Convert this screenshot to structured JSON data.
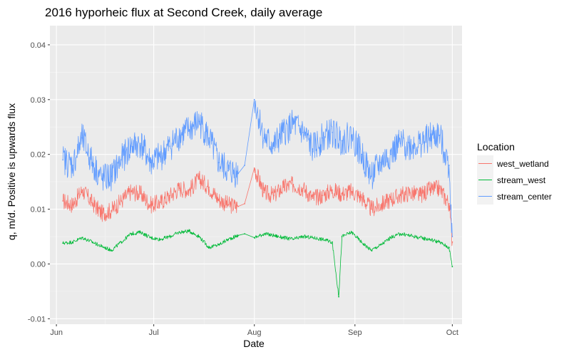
{
  "chart_data": {
    "type": "line",
    "title": "2016 hyporheic flux at Second Creek, daily average",
    "xlabel": "Date",
    "ylabel": "q, m/d. Positive is upwards flux",
    "xlim": [
      "2016-05-30",
      "2016-10-04"
    ],
    "ylim": [
      -0.011,
      0.0435
    ],
    "x_ticks": [
      {
        "date": "2016-06-01",
        "label": "Jun"
      },
      {
        "date": "2016-07-01",
        "label": "Jul"
      },
      {
        "date": "2016-08-01",
        "label": "Aug"
      },
      {
        "date": "2016-09-01",
        "label": "Sep"
      },
      {
        "date": "2016-10-01",
        "label": "Oct"
      }
    ],
    "y_ticks": [
      {
        "value": -0.01,
        "label": "-0.01"
      },
      {
        "value": 0.0,
        "label": "0.00"
      },
      {
        "value": 0.01,
        "label": "0.01"
      },
      {
        "value": 0.02,
        "label": "0.02"
      },
      {
        "value": 0.03,
        "label": "0.03"
      },
      {
        "value": 0.04,
        "label": "0.04"
      }
    ],
    "grid": true,
    "background": "#ebebeb",
    "legend": {
      "title": "Location",
      "placement": "right"
    },
    "series": [
      {
        "name": "west_wetland",
        "color": "#f8766d",
        "x": [
          "2016-06-03",
          "2016-06-06",
          "2016-06-09",
          "2016-06-12",
          "2016-06-15",
          "2016-06-18",
          "2016-06-21",
          "2016-06-24",
          "2016-06-27",
          "2016-06-30",
          "2016-07-03",
          "2016-07-06",
          "2016-07-09",
          "2016-07-12",
          "2016-07-15",
          "2016-07-18",
          "2016-07-21",
          "2016-07-24",
          "2016-07-27",
          "2016-07-29",
          "2016-08-01",
          "2016-08-04",
          "2016-08-07",
          "2016-08-10",
          "2016-08-13",
          "2016-08-16",
          "2016-08-19",
          "2016-08-22",
          "2016-08-25",
          "2016-08-28",
          "2016-08-31",
          "2016-09-03",
          "2016-09-06",
          "2016-09-09",
          "2016-09-12",
          "2016-09-15",
          "2016-09-18",
          "2016-09-21",
          "2016-09-24",
          "2016-09-27",
          "2016-09-30",
          "2016-10-01"
        ],
        "y": [
          0.0115,
          0.0108,
          0.0135,
          0.0112,
          0.0092,
          0.0098,
          0.0115,
          0.0132,
          0.0128,
          0.0108,
          0.0112,
          0.0125,
          0.0138,
          0.0135,
          0.0155,
          0.014,
          0.0118,
          0.0108,
          0.0105,
          0.011,
          0.0175,
          0.013,
          0.0125,
          0.014,
          0.0145,
          0.0138,
          0.012,
          0.0125,
          0.0135,
          0.0128,
          0.0132,
          0.0122,
          0.01,
          0.0108,
          0.0118,
          0.0125,
          0.013,
          0.0125,
          0.0135,
          0.0138,
          0.011,
          0.004
        ]
      },
      {
        "name": "stream_west",
        "color": "#00ba38",
        "x": [
          "2016-06-03",
          "2016-06-06",
          "2016-06-09",
          "2016-06-12",
          "2016-06-15",
          "2016-06-18",
          "2016-06-21",
          "2016-06-24",
          "2016-06-27",
          "2016-06-30",
          "2016-07-03",
          "2016-07-06",
          "2016-07-09",
          "2016-07-12",
          "2016-07-15",
          "2016-07-18",
          "2016-07-21",
          "2016-07-24",
          "2016-07-27",
          "2016-07-29",
          "2016-08-01",
          "2016-08-04",
          "2016-08-07",
          "2016-08-10",
          "2016-08-13",
          "2016-08-16",
          "2016-08-19",
          "2016-08-22",
          "2016-08-25",
          "2016-08-27",
          "2016-08-28",
          "2016-08-31",
          "2016-09-03",
          "2016-09-06",
          "2016-09-09",
          "2016-09-12",
          "2016-09-15",
          "2016-09-18",
          "2016-09-21",
          "2016-09-24",
          "2016-09-27",
          "2016-09-30",
          "2016-10-01"
        ],
        "y": [
          0.0038,
          0.004,
          0.0048,
          0.004,
          0.0032,
          0.0025,
          0.004,
          0.0055,
          0.0058,
          0.0048,
          0.0045,
          0.005,
          0.0058,
          0.006,
          0.005,
          0.003,
          0.0035,
          0.0045,
          0.0052,
          0.0055,
          0.0048,
          0.0055,
          0.0052,
          0.0048,
          0.0045,
          0.005,
          0.0048,
          0.0045,
          0.004,
          -0.006,
          0.005,
          0.0058,
          0.004,
          0.0025,
          0.0035,
          0.0048,
          0.0055,
          0.0052,
          0.0048,
          0.0045,
          0.004,
          0.003,
          -0.0005
        ]
      },
      {
        "name": "stream_center",
        "color": "#619cff",
        "x": [
          "2016-06-03",
          "2016-06-06",
          "2016-06-09",
          "2016-06-12",
          "2016-06-15",
          "2016-06-18",
          "2016-06-21",
          "2016-06-24",
          "2016-06-27",
          "2016-06-30",
          "2016-07-03",
          "2016-07-06",
          "2016-07-09",
          "2016-07-12",
          "2016-07-15",
          "2016-07-18",
          "2016-07-21",
          "2016-07-24",
          "2016-07-27",
          "2016-07-29",
          "2016-08-01",
          "2016-08-04",
          "2016-08-07",
          "2016-08-10",
          "2016-08-13",
          "2016-08-16",
          "2016-08-19",
          "2016-08-22",
          "2016-08-25",
          "2016-08-28",
          "2016-08-31",
          "2016-09-03",
          "2016-09-06",
          "2016-09-09",
          "2016-09-12",
          "2016-09-15",
          "2016-09-18",
          "2016-09-21",
          "2016-09-24",
          "2016-09-27",
          "2016-09-30",
          "2016-10-01"
        ],
        "y": [
          0.019,
          0.018,
          0.023,
          0.0185,
          0.0155,
          0.016,
          0.019,
          0.0215,
          0.022,
          0.0185,
          0.0195,
          0.0215,
          0.0235,
          0.0245,
          0.026,
          0.023,
          0.0185,
          0.017,
          0.0165,
          0.018,
          0.03,
          0.023,
          0.0215,
          0.024,
          0.0255,
          0.024,
          0.021,
          0.023,
          0.024,
          0.0225,
          0.0235,
          0.02,
          0.016,
          0.0185,
          0.02,
          0.022,
          0.0215,
          0.022,
          0.023,
          0.0235,
          0.018,
          0.005
        ]
      }
    ]
  }
}
